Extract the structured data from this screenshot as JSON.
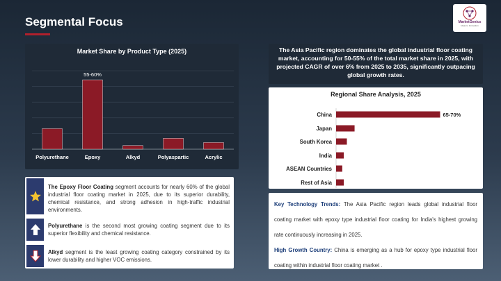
{
  "header": {
    "title": "Segmental Focus",
    "logo_name": "MarketGenics",
    "logo_tagline": "Ideas to Innovation"
  },
  "summary": {
    "text": "The Asia Pacific region dominates the global industrial floor coating market, accounting for 50-55% of the total market share in 2025, with projected CAGR of over 6% from 2025 to 2035, significantly outpacing global growth rates."
  },
  "insights": [
    {
      "icon": "star-icon",
      "bold": "The Epoxy Floor Coating",
      "text": " segment accounts for nearly 60% of the global industrial floor coating market in 2025, due to its superior durability, chemical resistance, and strong adhesion in high-traffic industrial environments."
    },
    {
      "icon": "arrow-up-icon",
      "bold": "Polyurethane",
      "text": " is the second most growing coating segment due to its superior flexibility and chemical resistance."
    },
    {
      "icon": "arrow-down-icon",
      "bold": "Alkyd",
      "text": " segment is the least growing coating category constrained by its lower durability and higher VOC emissions."
    }
  ],
  "trends": {
    "key_label": "Key Technology Trends:",
    "key_text": " The Asia Pacific region leads global industrial floor coating market with epoxy type industrial floor coating for India's highest growing rate continuously increasing in 2025.",
    "growth_label": "High Growth Country:",
    "growth_text": " China is emerging as a hub for epoxy type industrial floor coating within industrial floor coating market ."
  },
  "colors": {
    "bar": "#8b1a26",
    "accent": "#b0202c",
    "dark_panel": "#1f2a37",
    "label_blue": "#1e3f7a",
    "icon_box": "#2c3b6e",
    "star": "#f2c230"
  },
  "chart_data": [
    {
      "type": "bar",
      "title": "Market Share by Product Type (2025)",
      "categories": [
        "Polyurethane",
        "Epoxy",
        "Alkyd",
        "Polyaspartic",
        "Acrylic"
      ],
      "values": [
        17,
        57.5,
        3,
        9,
        5.5
      ],
      "data_labels": [
        "",
        "55-60%",
        "",
        "",
        ""
      ],
      "ylim": [
        0,
        65
      ],
      "grid": true
    },
    {
      "type": "bar",
      "orientation": "horizontal",
      "title": "Regional Share Analysis, 2025",
      "categories": [
        "China",
        "Japan",
        "South Korea",
        "India",
        "ASEAN Countries",
        "Rest of Asia"
      ],
      "values": [
        67.5,
        12,
        7,
        5,
        4,
        5
      ],
      "data_labels": [
        "65-70%",
        "",
        "",
        "",
        "",
        ""
      ],
      "xlim": [
        0,
        70
      ],
      "grid": false
    }
  ]
}
